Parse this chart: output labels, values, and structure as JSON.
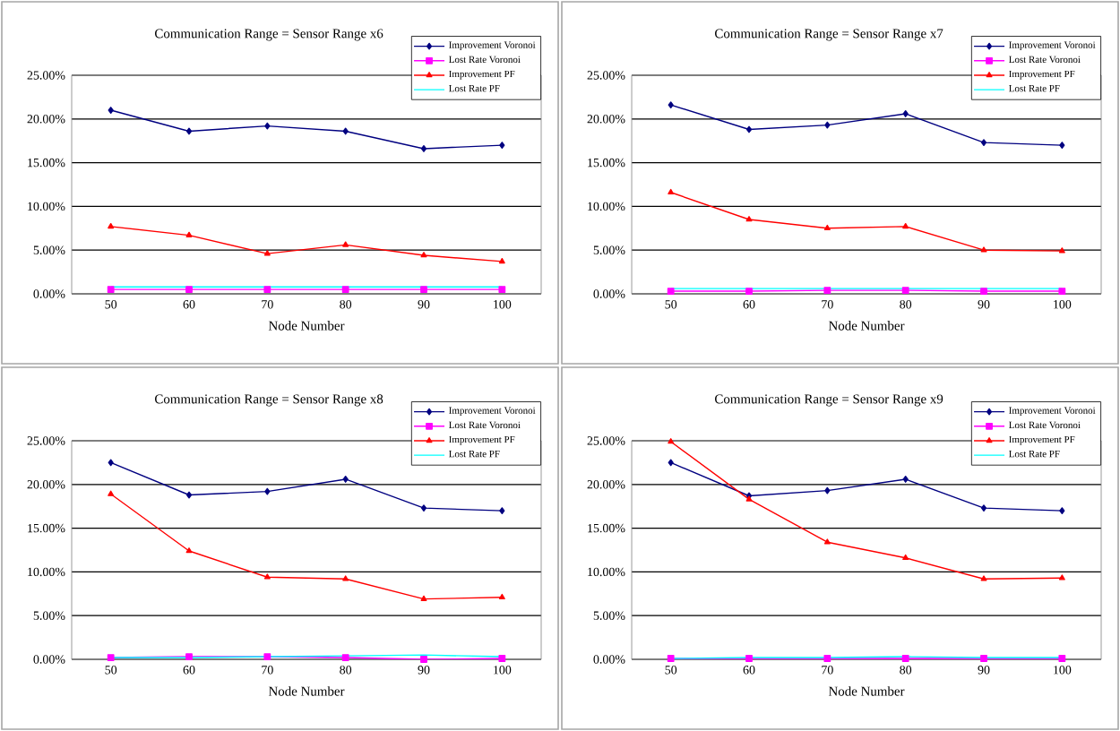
{
  "chart_data": [
    {
      "type": "line",
      "title": "Communication Range = Sensor Range x6",
      "xlabel": "Node Number",
      "categories": [
        "50",
        "60",
        "70",
        "80",
        "90",
        "100"
      ],
      "ylim": [
        0,
        25
      ],
      "yticks": [
        {
          "value": 0,
          "label": "0.00%"
        },
        {
          "value": 5,
          "label": "5.00%"
        },
        {
          "value": 10,
          "label": "10.00%"
        },
        {
          "value": 15,
          "label": "15.00%"
        },
        {
          "value": 20,
          "label": "20.00%"
        },
        {
          "value": 25,
          "label": "25.00%"
        }
      ],
      "grid": "y",
      "legend": "top right",
      "series": [
        {
          "name": "Improvement Voronoi",
          "color": "#000080",
          "marker": "diamond",
          "values": [
            21.0,
            18.6,
            19.2,
            18.6,
            16.6,
            17.0
          ]
        },
        {
          "name": "Lost Rate Voronoi",
          "color": "#ff00ff",
          "marker": "square",
          "values": [
            0.5,
            0.5,
            0.5,
            0.5,
            0.5,
            0.5
          ]
        },
        {
          "name": "Improvement PF",
          "color": "#ff0000",
          "marker": "triangle",
          "values": [
            7.7,
            6.7,
            4.6,
            5.6,
            4.4,
            3.7
          ]
        },
        {
          "name": "Lost Rate PF",
          "color": "#00ffff",
          "marker": "none",
          "values": [
            0.8,
            0.8,
            0.8,
            0.8,
            0.8,
            0.8
          ]
        }
      ]
    },
    {
      "type": "line",
      "title": "Communication Range = Sensor Range x7",
      "xlabel": "Node Number",
      "categories": [
        "50",
        "60",
        "70",
        "80",
        "90",
        "100"
      ],
      "ylim": [
        0,
        25
      ],
      "yticks": [
        {
          "value": 0,
          "label": "0.00%"
        },
        {
          "value": 5,
          "label": "5.00%"
        },
        {
          "value": 10,
          "label": "10.00%"
        },
        {
          "value": 15,
          "label": "15.00%"
        },
        {
          "value": 20,
          "label": "20.00%"
        },
        {
          "value": 25,
          "label": "25.00%"
        }
      ],
      "grid": "y",
      "legend": "top right",
      "series": [
        {
          "name": "Improvement Voronoi",
          "color": "#000080",
          "marker": "diamond",
          "values": [
            21.6,
            18.8,
            19.3,
            20.6,
            17.3,
            17.0
          ]
        },
        {
          "name": "Lost Rate Voronoi",
          "color": "#ff00ff",
          "marker": "square",
          "values": [
            0.3,
            0.3,
            0.4,
            0.4,
            0.3,
            0.3
          ]
        },
        {
          "name": "Improvement PF",
          "color": "#ff0000",
          "marker": "triangle",
          "values": [
            11.6,
            8.5,
            7.5,
            7.7,
            5.0,
            4.9
          ]
        },
        {
          "name": "Lost Rate PF",
          "color": "#00ffff",
          "marker": "none",
          "values": [
            0.6,
            0.6,
            0.6,
            0.6,
            0.6,
            0.6
          ]
        }
      ]
    },
    {
      "type": "line",
      "title": "Communication Range = Sensor Range x8",
      "xlabel": "Node Number",
      "categories": [
        "50",
        "60",
        "70",
        "80",
        "90",
        "100"
      ],
      "ylim": [
        0,
        25
      ],
      "yticks": [
        {
          "value": 0,
          "label": "0.00%"
        },
        {
          "value": 5,
          "label": "5.00%"
        },
        {
          "value": 10,
          "label": "10.00%"
        },
        {
          "value": 15,
          "label": "15.00%"
        },
        {
          "value": 20,
          "label": "20.00%"
        },
        {
          "value": 25,
          "label": "25.00%"
        }
      ],
      "grid": "y",
      "legend": "top right",
      "series": [
        {
          "name": "Improvement Voronoi",
          "color": "#000080",
          "marker": "diamond",
          "values": [
            22.5,
            18.8,
            19.2,
            20.6,
            17.3,
            17.0
          ]
        },
        {
          "name": "Lost Rate Voronoi",
          "color": "#ff00ff",
          "marker": "square",
          "values": [
            0.2,
            0.3,
            0.3,
            0.2,
            0.0,
            0.1
          ]
        },
        {
          "name": "Improvement PF",
          "color": "#ff0000",
          "marker": "triangle",
          "values": [
            18.9,
            12.4,
            9.4,
            9.2,
            6.9,
            7.1
          ]
        },
        {
          "name": "Lost Rate PF",
          "color": "#00ffff",
          "marker": "none",
          "values": [
            0.2,
            0.2,
            0.3,
            0.4,
            0.5,
            0.3
          ]
        }
      ]
    },
    {
      "type": "line",
      "title": "Communication Range = Sensor Range x9",
      "xlabel": "Node Number",
      "categories": [
        "50",
        "60",
        "70",
        "80",
        "90",
        "100"
      ],
      "ylim": [
        0,
        25
      ],
      "yticks": [
        {
          "value": 0,
          "label": "0.00%"
        },
        {
          "value": 5,
          "label": "5.00%"
        },
        {
          "value": 10,
          "label": "10.00%"
        },
        {
          "value": 15,
          "label": "15.00%"
        },
        {
          "value": 20,
          "label": "20.00%"
        },
        {
          "value": 25,
          "label": "25.00%"
        }
      ],
      "grid": "y",
      "legend": "top right",
      "series": [
        {
          "name": "Improvement Voronoi",
          "color": "#000080",
          "marker": "diamond",
          "values": [
            22.5,
            18.7,
            19.3,
            20.6,
            17.3,
            17.0
          ]
        },
        {
          "name": "Lost Rate Voronoi",
          "color": "#ff00ff",
          "marker": "square",
          "values": [
            0.1,
            0.1,
            0.1,
            0.1,
            0.1,
            0.1
          ]
        },
        {
          "name": "Improvement PF",
          "color": "#ff0000",
          "marker": "triangle",
          "values": [
            24.9,
            18.3,
            13.4,
            11.6,
            9.2,
            9.3
          ]
        },
        {
          "name": "Lost Rate PF",
          "color": "#00ffff",
          "marker": "none",
          "values": [
            0.1,
            0.2,
            0.2,
            0.3,
            0.2,
            0.2
          ]
        }
      ]
    }
  ]
}
